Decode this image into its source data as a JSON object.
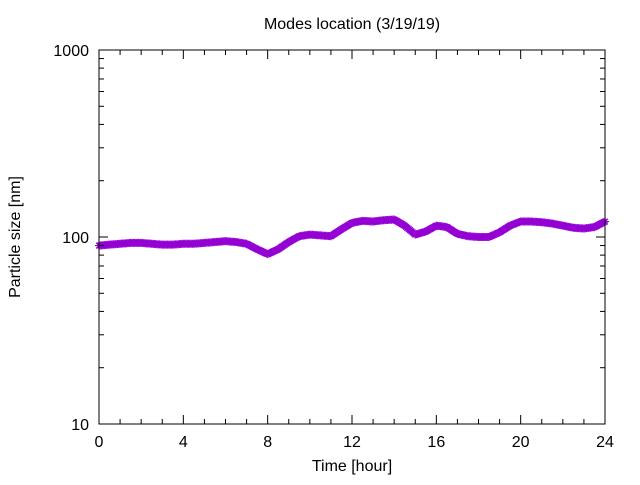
{
  "chart_data": {
    "type": "line",
    "title": "Modes location (3/19/19)",
    "xlabel": "Time [hour]",
    "ylabel": "Particle size [nm]",
    "xlim": [
      0,
      24
    ],
    "ylim": [
      10,
      1000
    ],
    "yscale": "log",
    "grid": false,
    "legend": "none",
    "x_ticks": [
      {
        "value": 0,
        "label": "0"
      },
      {
        "value": 4,
        "label": "4"
      },
      {
        "value": 8,
        "label": "8"
      },
      {
        "value": 12,
        "label": "12"
      },
      {
        "value": 16,
        "label": "16"
      },
      {
        "value": 20,
        "label": "20"
      },
      {
        "value": 24,
        "label": "24"
      }
    ],
    "y_ticks": [
      {
        "value": 10,
        "label": "10"
      },
      {
        "value": 100,
        "label": "100"
      },
      {
        "value": 1000,
        "label": "1000"
      }
    ],
    "series": [
      {
        "color": "#9400D3",
        "marker": "star",
        "x": [
          0,
          0.5,
          1,
          1.5,
          2,
          2.5,
          3,
          3.5,
          4,
          4.5,
          5,
          5.5,
          6,
          6.5,
          7,
          7.5,
          8,
          8.5,
          9,
          9.5,
          10,
          10.5,
          11,
          11.5,
          12,
          12.5,
          13,
          13.5,
          14,
          14.5,
          15,
          15.5,
          16,
          16.5,
          17,
          17.5,
          18,
          18.5,
          19,
          19.5,
          20,
          20.5,
          21,
          21.5,
          22,
          22.5,
          23,
          23.5,
          24
        ],
        "y": [
          90,
          91,
          92,
          93,
          93,
          92,
          91,
          91,
          92,
          92,
          93,
          94,
          95,
          94,
          92,
          86,
          81,
          86,
          94,
          101,
          103,
          102,
          101,
          110,
          119,
          122,
          121,
          123,
          124,
          115,
          103,
          107,
          115,
          113,
          104,
          101,
          100,
          100,
          106,
          115,
          121,
          121,
          120,
          118,
          115,
          112,
          111,
          113,
          121
        ]
      }
    ]
  }
}
